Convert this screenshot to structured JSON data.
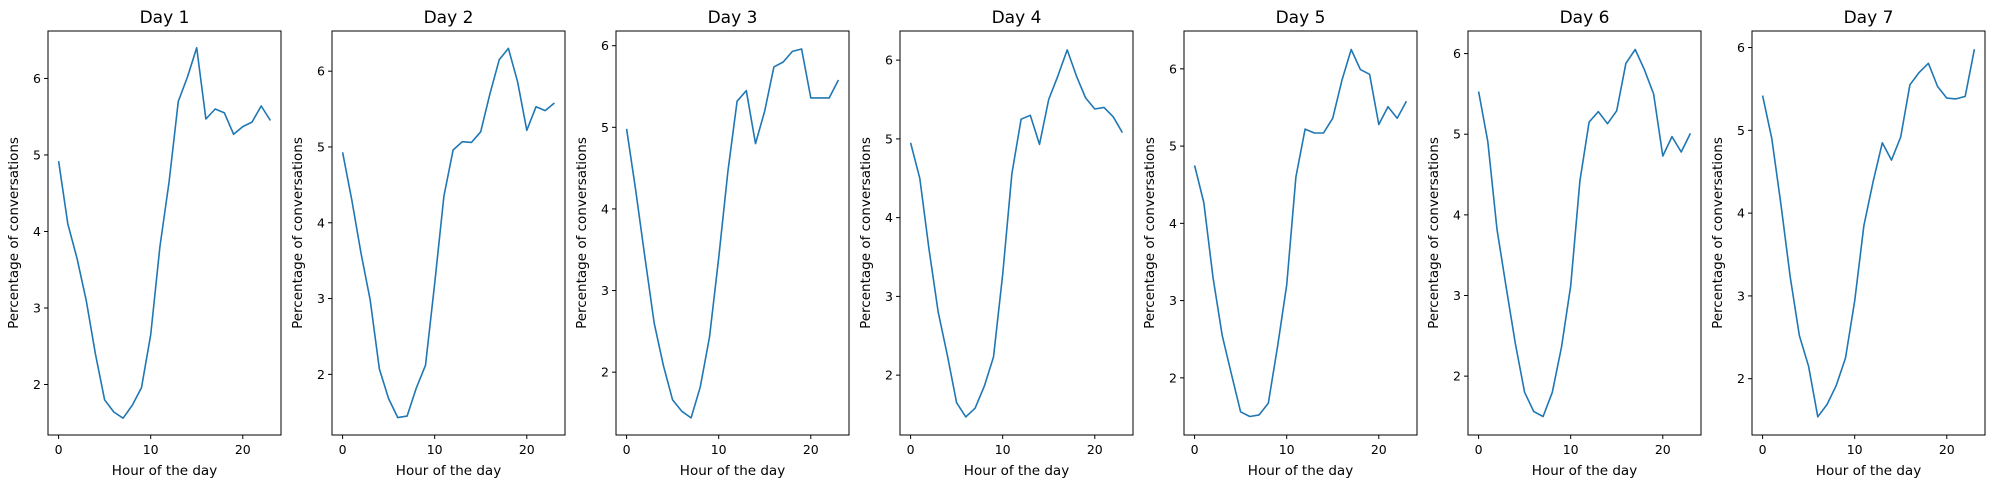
{
  "chart_data": [
    {
      "type": "line",
      "title": "Day 1",
      "xlabel": "Hour of the day",
      "ylabel": "Percentage of conversations",
      "x": [
        0,
        1,
        2,
        3,
        4,
        5,
        6,
        7,
        8,
        9,
        10,
        11,
        12,
        13,
        14,
        15,
        16,
        17,
        18,
        19,
        20,
        21,
        22,
        23
      ],
      "y": [
        4.92,
        4.1,
        3.65,
        3.1,
        2.4,
        1.8,
        1.64,
        1.56,
        1.73,
        1.96,
        2.65,
        3.8,
        4.65,
        5.7,
        6.02,
        6.4,
        5.47,
        5.6,
        5.55,
        5.27,
        5.37,
        5.43,
        5.64,
        5.45
      ],
      "xlim": [
        -1.15,
        24.15
      ],
      "ylim": [
        1.34,
        6.62
      ],
      "xticks": [
        0,
        10,
        20
      ],
      "yticks": [
        2,
        3,
        4,
        5,
        6
      ],
      "color": "#1f77b4"
    },
    {
      "type": "line",
      "title": "Day 2",
      "xlabel": "Hour of the day",
      "ylabel": "Percentage of conversations",
      "x": [
        0,
        1,
        2,
        3,
        4,
        5,
        6,
        7,
        8,
        9,
        10,
        11,
        12,
        13,
        14,
        15,
        16,
        17,
        18,
        19,
        20,
        21,
        22,
        23
      ],
      "y": [
        4.93,
        4.3,
        3.6,
        2.98,
        2.07,
        1.68,
        1.43,
        1.45,
        1.82,
        2.12,
        3.2,
        4.35,
        4.96,
        5.07,
        5.06,
        5.2,
        5.7,
        6.15,
        6.3,
        5.86,
        5.22,
        5.53,
        5.48,
        5.58
      ],
      "xlim": [
        -1.15,
        24.15
      ],
      "ylim": [
        1.2,
        6.53
      ],
      "xticks": [
        0,
        10,
        20
      ],
      "yticks": [
        2,
        3,
        4,
        5,
        6
      ],
      "color": "#1f77b4"
    },
    {
      "type": "line",
      "title": "Day 3",
      "xlabel": "Hour of the day",
      "ylabel": "Percentage of conversations",
      "x": [
        0,
        1,
        2,
        3,
        4,
        5,
        6,
        7,
        8,
        9,
        10,
        11,
        12,
        13,
        14,
        15,
        16,
        17,
        18,
        19,
        20,
        21,
        22,
        23
      ],
      "y": [
        4.98,
        4.22,
        3.4,
        2.6,
        2.08,
        1.66,
        1.52,
        1.44,
        1.82,
        2.43,
        3.4,
        4.46,
        5.32,
        5.45,
        4.8,
        5.2,
        5.74,
        5.8,
        5.93,
        5.96,
        5.36,
        5.36,
        5.36,
        5.58
      ],
      "xlim": [
        -1.15,
        24.15
      ],
      "ylim": [
        1.23,
        6.18
      ],
      "xticks": [
        0,
        10,
        20
      ],
      "yticks": [
        2,
        3,
        4,
        5,
        6
      ],
      "color": "#1f77b4"
    },
    {
      "type": "line",
      "title": "Day 4",
      "xlabel": "Hour of the day",
      "ylabel": "Percentage of conversations",
      "x": [
        0,
        1,
        2,
        3,
        4,
        5,
        6,
        7,
        8,
        9,
        10,
        11,
        12,
        13,
        14,
        15,
        16,
        17,
        18,
        19,
        20,
        21,
        22,
        23
      ],
      "y": [
        4.95,
        4.5,
        3.6,
        2.8,
        2.25,
        1.65,
        1.47,
        1.58,
        1.86,
        2.23,
        3.28,
        4.56,
        5.25,
        5.3,
        4.93,
        5.5,
        5.8,
        6.13,
        5.8,
        5.52,
        5.38,
        5.4,
        5.28,
        5.08
      ],
      "xlim": [
        -1.15,
        24.15
      ],
      "ylim": [
        1.24,
        6.37
      ],
      "xticks": [
        0,
        10,
        20
      ],
      "yticks": [
        2,
        3,
        4,
        5,
        6
      ],
      "color": "#1f77b4"
    },
    {
      "type": "line",
      "title": "Day 5",
      "xlabel": "Hour of the day",
      "ylabel": "Percentage of conversations",
      "x": [
        0,
        1,
        2,
        3,
        4,
        5,
        6,
        7,
        8,
        9,
        10,
        11,
        12,
        13,
        14,
        15,
        16,
        17,
        18,
        19,
        20,
        21,
        22,
        23
      ],
      "y": [
        4.75,
        4.27,
        3.3,
        2.55,
        2.05,
        1.56,
        1.5,
        1.52,
        1.67,
        2.4,
        3.2,
        4.6,
        5.22,
        5.17,
        5.17,
        5.36,
        5.85,
        6.25,
        5.99,
        5.93,
        5.28,
        5.51,
        5.36,
        5.58
      ],
      "xlim": [
        -1.15,
        24.15
      ],
      "ylim": [
        1.26,
        6.49
      ],
      "xticks": [
        0,
        10,
        20
      ],
      "yticks": [
        2,
        3,
        4,
        5,
        6
      ],
      "color": "#1f77b4"
    },
    {
      "type": "line",
      "title": "Day 6",
      "xlabel": "Hour of the day",
      "ylabel": "Percentage of conversations",
      "x": [
        0,
        1,
        2,
        3,
        4,
        5,
        6,
        7,
        8,
        9,
        10,
        11,
        12,
        13,
        14,
        15,
        16,
        17,
        18,
        19,
        20,
        21,
        22,
        23
      ],
      "y": [
        5.53,
        4.91,
        3.82,
        3.1,
        2.4,
        1.8,
        1.56,
        1.5,
        1.8,
        2.36,
        3.12,
        4.42,
        5.15,
        5.28,
        5.13,
        5.29,
        5.88,
        6.05,
        5.8,
        5.5,
        4.73,
        4.97,
        4.78,
        5.01
      ],
      "xlim": [
        -1.15,
        24.15
      ],
      "ylim": [
        1.27,
        6.28
      ],
      "xticks": [
        0,
        10,
        20
      ],
      "yticks": [
        2,
        3,
        4,
        5,
        6
      ],
      "color": "#1f77b4"
    },
    {
      "type": "line",
      "title": "Day 7",
      "xlabel": "Hour of the day",
      "ylabel": "Percentage of conversations",
      "x": [
        0,
        1,
        2,
        3,
        4,
        5,
        6,
        7,
        8,
        9,
        10,
        11,
        12,
        13,
        14,
        15,
        16,
        17,
        18,
        19,
        20,
        21,
        22,
        23
      ],
      "y": [
        5.42,
        4.9,
        4.1,
        3.23,
        2.52,
        2.15,
        1.54,
        1.69,
        1.92,
        2.25,
        2.94,
        3.85,
        4.38,
        4.85,
        4.64,
        4.92,
        5.55,
        5.7,
        5.81,
        5.53,
        5.39,
        5.38,
        5.41,
        5.98
      ],
      "xlim": [
        -1.15,
        24.15
      ],
      "ylim": [
        1.32,
        6.2
      ],
      "xticks": [
        0,
        10,
        20
      ],
      "yticks": [
        2,
        3,
        4,
        5,
        6
      ],
      "color": "#1f77b4"
    }
  ]
}
